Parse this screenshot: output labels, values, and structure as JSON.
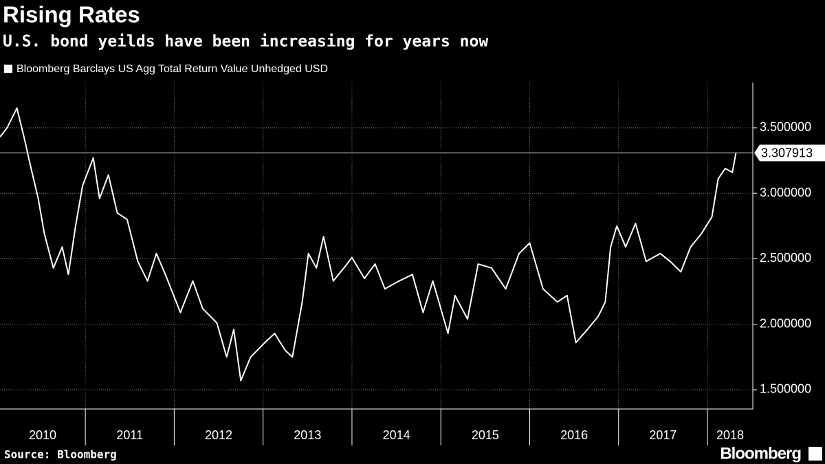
{
  "chart_data": {
    "type": "line",
    "title": "Rising Rates",
    "subtitle": "U.S. bond yeilds have been increasing for years now",
    "source": "Source: Bloomberg",
    "brand": "Bloomberg",
    "x": [
      2010.04,
      2010.12,
      2010.23,
      2010.31,
      2010.39,
      2010.47,
      2010.54,
      2010.64,
      2010.74,
      2010.81,
      2010.89,
      2010.97,
      2011.09,
      2011.16,
      2011.26,
      2011.36,
      2011.47,
      2011.59,
      2011.7,
      2011.8,
      2011.9,
      2012.07,
      2012.21,
      2012.32,
      2012.48,
      2012.59,
      2012.67,
      2012.75,
      2012.86,
      2013.02,
      2013.13,
      2013.25,
      2013.33,
      2013.44,
      2013.51,
      2013.6,
      2013.68,
      2013.79,
      2013.91,
      2014.0,
      2014.14,
      2014.26,
      2014.37,
      2014.53,
      2014.68,
      2014.8,
      2014.91,
      2015.08,
      2015.16,
      2015.3,
      2015.42,
      2015.57,
      2015.73,
      2015.88,
      2016.0,
      2016.15,
      2016.31,
      2016.42,
      2016.52,
      2016.65,
      2016.77,
      2016.85,
      2016.91,
      2016.98,
      2017.08,
      2017.19,
      2017.31,
      2017.47,
      2017.58,
      2017.7,
      2017.81,
      2017.93,
      2018.05,
      2018.12,
      2018.2,
      2018.28,
      2018.32
    ],
    "series": [
      {
        "name": "Bloomberg Barclays US Agg Total Return Value Unhedged USD",
        "color": "#ffffff",
        "values": [
          3.43,
          3.5,
          3.65,
          3.43,
          3.19,
          2.96,
          2.69,
          2.43,
          2.59,
          2.38,
          2.75,
          3.06,
          3.27,
          2.96,
          3.14,
          2.85,
          2.8,
          2.48,
          2.33,
          2.54,
          2.38,
          2.09,
          2.33,
          2.12,
          2.01,
          1.75,
          1.96,
          1.57,
          1.75,
          1.86,
          1.93,
          1.8,
          1.75,
          2.17,
          2.54,
          2.43,
          2.67,
          2.33,
          2.43,
          2.51,
          2.35,
          2.46,
          2.27,
          2.33,
          2.38,
          2.09,
          2.33,
          1.93,
          2.22,
          2.04,
          2.46,
          2.43,
          2.27,
          2.54,
          2.62,
          2.27,
          2.17,
          2.22,
          1.86,
          1.96,
          2.06,
          2.17,
          2.59,
          2.75,
          2.59,
          2.77,
          2.48,
          2.54,
          2.48,
          2.4,
          2.59,
          2.69,
          2.82,
          3.11,
          3.19,
          3.16,
          3.307913
        ]
      }
    ],
    "xlim": [
      2010.04,
      2018.51
    ],
    "xticks": [
      2011,
      2012,
      2013,
      2014,
      2015,
      2016,
      2017,
      2018
    ],
    "categories": [
      "2010",
      "2011",
      "2012",
      "2013",
      "2014",
      "2015",
      "2016",
      "2017",
      "2018"
    ],
    "ylim": [
      1.353,
      3.846
    ],
    "yticks": [
      {
        "value": 1.5,
        "label": "1.500000"
      },
      {
        "value": 2.0,
        "label": "2.000000"
      },
      {
        "value": 2.5,
        "label": "2.500000"
      },
      {
        "value": 3.0,
        "label": "3.000000"
      },
      {
        "value": 3.5,
        "label": "3.500000"
      }
    ],
    "grid": true
  }
}
